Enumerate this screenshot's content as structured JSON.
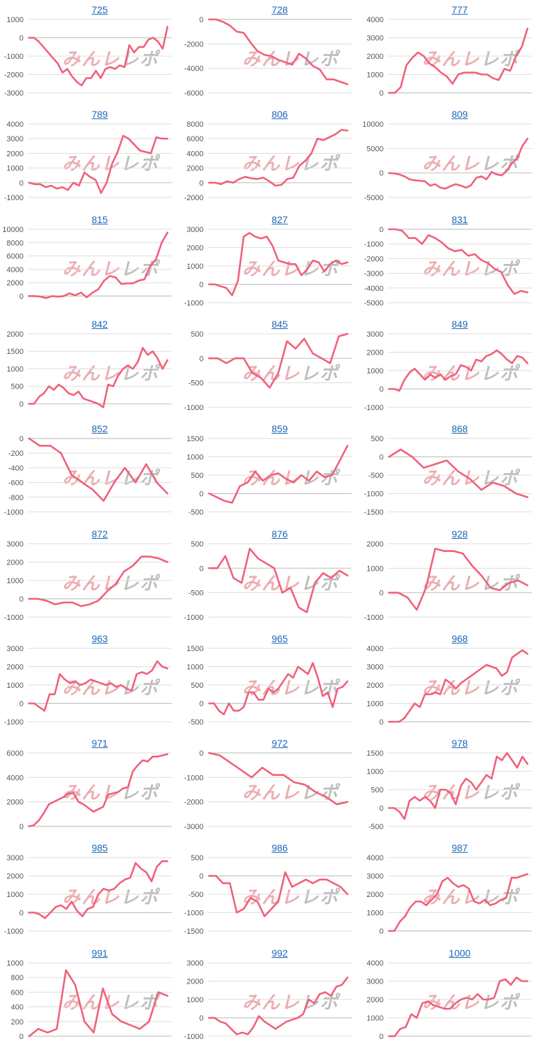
{
  "colors": {
    "line": "#f0607a",
    "grid": "#dddddd",
    "axis": "#c4c4c4",
    "tick": "#555555",
    "title": "#1a66b8"
  },
  "watermark": {
    "part1": "みんレ",
    "part2": "レポ"
  },
  "chart_data": [
    {
      "type": "line",
      "title": "725",
      "yticks": [
        1000,
        0,
        -1000,
        -2000,
        -3000
      ],
      "ylim": [
        -3000,
        1000
      ],
      "values": [
        0,
        0,
        -200,
        -500,
        -800,
        -1100,
        -1400,
        -1900,
        -1700,
        -2100,
        -2400,
        -2600,
        -2200,
        -2200,
        -1800,
        -2200,
        -1700,
        -1600,
        -1700,
        -1500,
        -1600,
        -400,
        -800,
        -500,
        -500,
        -100,
        0,
        -200,
        -600,
        600
      ]
    },
    {
      "type": "line",
      "title": "728",
      "yticks": [
        0,
        -2000,
        -4000,
        -6000
      ],
      "ylim": [
        -6000,
        0
      ],
      "values": [
        0,
        0,
        -200,
        -500,
        -1000,
        -1100,
        -1900,
        -2600,
        -2900,
        -3000,
        -3300,
        -3500,
        -3700,
        -2800,
        -3200,
        -3800,
        -4100,
        -4900,
        -4900,
        -5100,
        -5300
      ]
    },
    {
      "type": "line",
      "title": "777",
      "yticks": [
        4000,
        3000,
        2000,
        1000,
        0
      ],
      "ylim": [
        0,
        4000
      ],
      "values": [
        0,
        0,
        300,
        1500,
        1900,
        2200,
        2000,
        1600,
        1400,
        1100,
        900,
        500,
        1000,
        1100,
        1100,
        1100,
        1000,
        1000,
        800,
        700,
        1300,
        1200,
        2000,
        2500,
        3500
      ]
    },
    {
      "type": "line",
      "title": "789",
      "yticks": [
        4000,
        3000,
        2000,
        1000,
        0,
        -1000
      ],
      "ylim": [
        -1000,
        4000
      ],
      "values": [
        0,
        -100,
        -100,
        -300,
        -200,
        -400,
        -300,
        -500,
        0,
        -200,
        700,
        400,
        200,
        -700,
        0,
        1300,
        2100,
        3200,
        3000,
        2600,
        2200,
        2100,
        2000,
        3100,
        3000,
        3000
      ]
    },
    {
      "type": "line",
      "title": "806",
      "yticks": [
        8000,
        6000,
        4000,
        2000,
        0,
        -2000
      ],
      "ylim": [
        -2000,
        8000
      ],
      "values": [
        0,
        0,
        -200,
        200,
        0,
        500,
        800,
        600,
        500,
        700,
        200,
        -400,
        -300,
        500,
        700,
        2300,
        3000,
        4000,
        6000,
        5800,
        6200,
        6600,
        7200,
        7100
      ]
    },
    {
      "type": "line",
      "title": "809",
      "yticks": [
        10000,
        5000,
        0,
        -5000
      ],
      "ylim": [
        -5000,
        10000
      ],
      "values": [
        0,
        -100,
        -300,
        -700,
        -1300,
        -1500,
        -1600,
        -1700,
        -2600,
        -2300,
        -3000,
        -3200,
        -2700,
        -2300,
        -2600,
        -3000,
        -2500,
        -1000,
        -700,
        -1300,
        200,
        -300,
        -500,
        500,
        2000,
        3000,
        5500,
        7000
      ]
    },
    {
      "type": "line",
      "title": "815",
      "yticks": [
        10000,
        8000,
        6000,
        4000,
        2000,
        0
      ],
      "ylim": [
        -1000,
        10000
      ],
      "values": [
        0,
        0,
        -100,
        -300,
        0,
        -100,
        0,
        400,
        100,
        500,
        -200,
        500,
        1000,
        2300,
        3000,
        2800,
        1800,
        1900,
        1900,
        2300,
        2500,
        4500,
        5500,
        8000,
        9500
      ]
    },
    {
      "type": "line",
      "title": "827",
      "yticks": [
        3000,
        2000,
        1000,
        0,
        -1000
      ],
      "ylim": [
        -1000,
        3000
      ],
      "values": [
        0,
        0,
        -100,
        -200,
        -600,
        200,
        2600,
        2800,
        2600,
        2500,
        2600,
        2100,
        1300,
        1200,
        1100,
        1100,
        500,
        800,
        1300,
        1200,
        700,
        1100,
        1300,
        1100,
        1200
      ]
    },
    {
      "type": "line",
      "title": "831",
      "yticks": [
        0,
        -1000,
        -2000,
        -3000,
        -4000,
        -5000
      ],
      "ylim": [
        -5000,
        0
      ],
      "values": [
        0,
        0,
        -100,
        -600,
        -600,
        -1000,
        -400,
        -600,
        -900,
        -1300,
        -1500,
        -1400,
        -1800,
        -1700,
        -2100,
        -2300,
        -2700,
        -2900,
        -3800,
        -4400,
        -4200,
        -4300
      ]
    },
    {
      "type": "line",
      "title": "842",
      "yticks": [
        2000,
        1500,
        1000,
        500,
        0
      ],
      "ylim": [
        -100,
        2000
      ],
      "values": [
        0,
        0,
        200,
        300,
        500,
        400,
        550,
        450,
        300,
        250,
        350,
        150,
        100,
        50,
        0,
        -100,
        550,
        500,
        800,
        1000,
        1100,
        1000,
        1200,
        1600,
        1400,
        1500,
        1300,
        1000,
        1250
      ]
    },
    {
      "type": "line",
      "title": "845",
      "yticks": [
        500,
        0,
        -500,
        -1000
      ],
      "ylim": [
        -1000,
        500
      ],
      "values": [
        0,
        0,
        -100,
        0,
        0,
        -300,
        -400,
        -600,
        -300,
        350,
        200,
        400,
        100,
        0,
        -100,
        450,
        500
      ]
    },
    {
      "type": "line",
      "title": "849",
      "yticks": [
        3000,
        2000,
        1000,
        0,
        -1000
      ],
      "ylim": [
        -1000,
        3000
      ],
      "values": [
        0,
        0,
        -100,
        500,
        900,
        1100,
        800,
        500,
        800,
        600,
        800,
        500,
        700,
        800,
        1300,
        1200,
        1000,
        1600,
        1500,
        1800,
        1900,
        2100,
        1900,
        1600,
        1400,
        1800,
        1700,
        1400
      ]
    },
    {
      "type": "line",
      "title": "852",
      "yticks": [
        0,
        -200,
        -400,
        -600,
        -800,
        -1000
      ],
      "ylim": [
        -1000,
        0
      ],
      "values": [
        0,
        -100,
        -100,
        -200,
        -500,
        -600,
        -700,
        -850,
        -600,
        -400,
        -600,
        -350,
        -600,
        -750
      ]
    },
    {
      "type": "line",
      "title": "859",
      "yticks": [
        1500,
        1000,
        500,
        0,
        -500
      ],
      "ylim": [
        -500,
        1500
      ],
      "values": [
        0,
        -100,
        -200,
        -250,
        200,
        300,
        600,
        350,
        500,
        550,
        400,
        300,
        500,
        350,
        600,
        450,
        500,
        900,
        1300
      ]
    },
    {
      "type": "line",
      "title": "868",
      "yticks": [
        500,
        0,
        -500,
        -1000,
        -1500
      ],
      "ylim": [
        -1500,
        500
      ],
      "values": [
        0,
        200,
        0,
        -300,
        -200,
        -100,
        -400,
        -600,
        -900,
        -700,
        -800,
        -1000,
        -1100
      ]
    },
    {
      "type": "line",
      "title": "872",
      "yticks": [
        3000,
        2000,
        1000,
        0,
        -1000
      ],
      "ylim": [
        -1000,
        3000
      ],
      "values": [
        0,
        0,
        -100,
        -300,
        -200,
        -200,
        -400,
        -300,
        -100,
        400,
        800,
        1500,
        1800,
        2300,
        2300,
        2200,
        2000
      ]
    },
    {
      "type": "line",
      "title": "876",
      "yticks": [
        500,
        0,
        -500,
        -1000
      ],
      "ylim": [
        -1000,
        500
      ],
      "values": [
        0,
        0,
        250,
        -200,
        -300,
        400,
        200,
        100,
        0,
        -500,
        -400,
        -800,
        -900,
        -300,
        -100,
        -200,
        -50,
        -150
      ]
    },
    {
      "type": "line",
      "title": "928",
      "yticks": [
        2000,
        1000,
        0,
        -1000
      ],
      "ylim": [
        -1000,
        2000
      ],
      "values": [
        0,
        0,
        -200,
        -700,
        200,
        1800,
        1700,
        1700,
        1600,
        1100,
        700,
        200,
        100,
        400,
        500,
        300
      ]
    },
    {
      "type": "line",
      "title": "963",
      "yticks": [
        3000,
        2000,
        1000,
        0,
        -1000
      ],
      "ylim": [
        -1000,
        3000
      ],
      "values": [
        0,
        0,
        -200,
        -400,
        500,
        500,
        1600,
        1300,
        1100,
        1200,
        1000,
        1100,
        1300,
        1200,
        1100,
        1000,
        1100,
        900,
        1000,
        800,
        700,
        1600,
        1700,
        1600,
        1800,
        2300,
        2000,
        1900
      ]
    },
    {
      "type": "line",
      "title": "965",
      "yticks": [
        1500,
        1000,
        500,
        0,
        -500
      ],
      "ylim": [
        -500,
        1500
      ],
      "values": [
        0,
        0,
        -200,
        -300,
        0,
        -200,
        -200,
        -100,
        300,
        300,
        100,
        100,
        400,
        300,
        400,
        600,
        800,
        700,
        1000,
        900,
        800,
        1100,
        700,
        200,
        300,
        -100,
        400,
        450,
        600
      ]
    },
    {
      "type": "line",
      "title": "968",
      "yticks": [
        4000,
        3000,
        2000,
        1000,
        0
      ],
      "ylim": [
        0,
        4000
      ],
      "values": [
        0,
        0,
        0,
        200,
        600,
        1000,
        800,
        1500,
        1500,
        1600,
        1500,
        2300,
        2100,
        1800,
        2100,
        2300,
        2500,
        2700,
        2900,
        3100,
        3000,
        2900,
        2500,
        2700,
        3500,
        3700,
        3900,
        3700
      ]
    },
    {
      "type": "line",
      "title": "971",
      "yticks": [
        6000,
        4000,
        2000,
        0
      ],
      "ylim": [
        0,
        6000
      ],
      "values": [
        0,
        100,
        500,
        1100,
        1800,
        2000,
        2200,
        2400,
        2700,
        2700,
        2000,
        1800,
        1500,
        1200,
        1400,
        1600,
        2600,
        2700,
        2800,
        3100,
        3200,
        4500,
        5000,
        5400,
        5300,
        5700,
        5700,
        5800,
        5900
      ]
    },
    {
      "type": "line",
      "title": "972",
      "yticks": [
        0,
        -1000,
        -2000,
        -3000
      ],
      "ylim": [
        -3000,
        0
      ],
      "values": [
        0,
        -100,
        -400,
        -700,
        -1000,
        -600,
        -900,
        -900,
        -1200,
        -1300,
        -1600,
        -1800,
        -2100,
        -2000
      ]
    },
    {
      "type": "line",
      "title": "978",
      "yticks": [
        1500,
        1000,
        500,
        0,
        -500
      ],
      "ylim": [
        -500,
        1500
      ],
      "values": [
        0,
        0,
        -100,
        -300,
        200,
        300,
        200,
        300,
        200,
        0,
        500,
        500,
        400,
        100,
        600,
        800,
        700,
        500,
        700,
        900,
        800,
        1400,
        1300,
        1500,
        1300,
        1100,
        1400,
        1200
      ]
    },
    {
      "type": "line",
      "title": "985",
      "yticks": [
        3000,
        2000,
        1000,
        0,
        -1000
      ],
      "ylim": [
        -1000,
        3000
      ],
      "values": [
        0,
        0,
        -100,
        -300,
        0,
        300,
        400,
        200,
        600,
        100,
        -200,
        200,
        300,
        1000,
        1300,
        1200,
        1300,
        1600,
        1800,
        1900,
        2700,
        2400,
        2200,
        1700,
        2500,
        2800,
        2800
      ]
    },
    {
      "type": "line",
      "title": "986",
      "yticks": [
        500,
        0,
        -500,
        -1000,
        -1500
      ],
      "ylim": [
        -1500,
        500
      ],
      "values": [
        0,
        0,
        -200,
        -200,
        -1000,
        -900,
        -600,
        -700,
        -1100,
        -900,
        -700,
        100,
        -300,
        -200,
        -100,
        -200,
        -100,
        -100,
        -200,
        -300,
        -500
      ]
    },
    {
      "type": "line",
      "title": "987",
      "yticks": [
        4000,
        3000,
        2000,
        1000,
        0
      ],
      "ylim": [
        0,
        4000
      ],
      "values": [
        0,
        0,
        500,
        800,
        1300,
        1600,
        1600,
        1400,
        1700,
        2000,
        2700,
        2900,
        2600,
        2400,
        2500,
        2300,
        1600,
        1500,
        1700,
        1400,
        1500,
        1700,
        1800,
        2900,
        2900,
        3000,
        3100
      ]
    },
    {
      "type": "line",
      "title": "991",
      "yticks": [
        1000,
        800,
        600,
        400,
        200,
        0
      ],
      "ylim": [
        0,
        1000
      ],
      "values": [
        0,
        100,
        50,
        100,
        900,
        700,
        200,
        50,
        650,
        300,
        200,
        150,
        100,
        200,
        600,
        550
      ]
    },
    {
      "type": "line",
      "title": "992",
      "yticks": [
        3000,
        2000,
        1000,
        0,
        -1000
      ],
      "ylim": [
        -1000,
        3000
      ],
      "values": [
        0,
        0,
        -200,
        -300,
        -600,
        -900,
        -800,
        -900,
        -500,
        100,
        -200,
        -400,
        -600,
        -400,
        -200,
        -100,
        0,
        200,
        1000,
        800,
        1300,
        1400,
        1200,
        1700,
        1800,
        2200
      ]
    },
    {
      "type": "line",
      "title": "1000",
      "yticks": [
        4000,
        3000,
        2000,
        1000,
        0
      ],
      "ylim": [
        0,
        4000
      ],
      "values": [
        0,
        0,
        400,
        500,
        1200,
        1000,
        1800,
        1900,
        1700,
        1600,
        1500,
        1500,
        1800,
        2000,
        2100,
        2000,
        2300,
        2000,
        2000,
        2100,
        3000,
        3100,
        2800,
        3200,
        3000,
        3000
      ]
    }
  ]
}
